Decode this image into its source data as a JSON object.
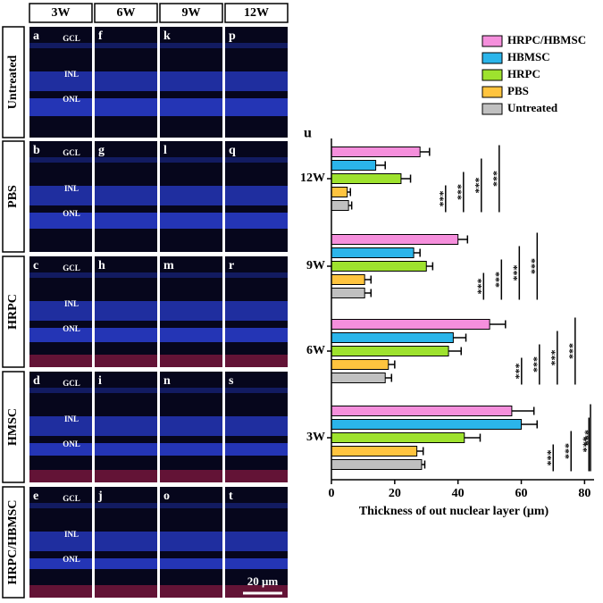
{
  "micrographs": {
    "columns": [
      "3W",
      "6W",
      "9W",
      "12W"
    ],
    "rows": [
      {
        "label": "Untreated",
        "panels": [
          "a",
          "f",
          "k",
          "p"
        ]
      },
      {
        "label": "PBS",
        "panels": [
          "b",
          "g",
          "l",
          "q"
        ]
      },
      {
        "label": "HRPC",
        "panels": [
          "c",
          "h",
          "m",
          "r"
        ]
      },
      {
        "label": "HMSC",
        "panels": [
          "d",
          "i",
          "n",
          "s"
        ]
      },
      {
        "label": "HRPC/HBMSC",
        "panels": [
          "e",
          "j",
          "o",
          "t"
        ]
      }
    ],
    "layers": [
      "GCL",
      "INL",
      "ONL"
    ],
    "scale_bar": "20 μm"
  },
  "chart_data": {
    "type": "bar",
    "orientation": "horizontal",
    "panel_label": "u",
    "xlabel": "Thickness of out nuclear layer (μm)",
    "categories": [
      "12W",
      "9W",
      "6W",
      "3W"
    ],
    "series": [
      {
        "name": "HRPC/HBMSC",
        "color": "#f58fdc",
        "values": [
          28,
          40,
          50,
          57
        ],
        "errors": [
          3,
          3,
          5,
          7
        ]
      },
      {
        "name": "HBMSC",
        "color": "#2bb5ea",
        "values": [
          14,
          26,
          38.5,
          60
        ],
        "errors": [
          3,
          2,
          4,
          5
        ]
      },
      {
        "name": "HRPC",
        "color": "#9ee22e",
        "values": [
          22,
          30,
          37,
          42
        ],
        "errors": [
          3,
          2,
          4,
          5
        ]
      },
      {
        "name": "PBS",
        "color": "#ffc43f",
        "values": [
          5,
          10.5,
          18,
          27
        ],
        "errors": [
          1,
          2,
          2,
          2
        ]
      },
      {
        "name": "Untreated",
        "color": "#c0c0c0",
        "values": [
          5.4,
          10.5,
          17,
          28.5
        ],
        "errors": [
          1,
          2,
          2,
          1
        ]
      }
    ],
    "significance": "***",
    "xlim": [
      0,
      83
    ],
    "xticks": [
      0,
      20,
      40,
      60,
      80
    ]
  }
}
